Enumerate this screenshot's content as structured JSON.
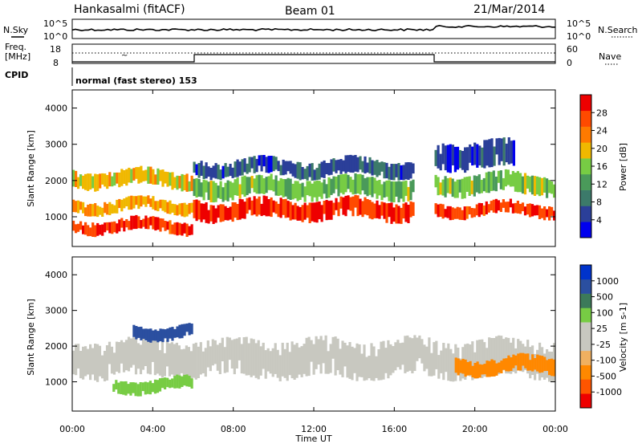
{
  "header": {
    "station": "Hankasalmi (fitACF)",
    "beam": "Beam 01",
    "date": "21/Mar/2014"
  },
  "top_panels": {
    "nsky_label": "N.Sky",
    "nsearch_label": "N.Search",
    "freq_label_1": "Freq.",
    "freq_label_2": "[MHz]",
    "nave_label": "Nave",
    "cpid_label": "CPID",
    "noise_ticks": [
      "10^5",
      "10^0"
    ],
    "freq_ticks": [
      "18",
      "8"
    ],
    "nave_ticks": [
      "60",
      "0"
    ],
    "cpid_text": "normal (fast stereo) 153"
  },
  "colors": {
    "power": [
      "#0000ee",
      "#2b3f99",
      "#3c7a6a",
      "#4a9a5a",
      "#77cc44",
      "#f0b800",
      "#ff7a00",
      "#ff4a00",
      "#ee0000"
    ],
    "velocity": [
      "#ee0000",
      "#ff5500",
      "#ff8800",
      "#f0b060",
      "#c8c8c0",
      "#c8c8c0",
      "#77cc44",
      "#3c7a5a",
      "#2b4fa0",
      "#0033cc"
    ],
    "ground_scatter": "#c8c8c0"
  },
  "chart_data": [
    {
      "type": "heatmap",
      "panel": "power",
      "ylabel": "Slant Range [km]",
      "yticks": [
        "1000",
        "2000",
        "3000",
        "4000"
      ],
      "ylim": [
        180,
        4500
      ],
      "xlim": [
        0,
        24
      ],
      "colorbar_label": "Power [dB]",
      "colorbar_ticks": [
        "4",
        "8",
        "12",
        "16",
        "20",
        "24",
        "28"
      ],
      "colorbar_range": [
        0,
        30
      ],
      "regions": [
        {
          "t0": 0,
          "t1": 6,
          "r0": 550,
          "r1": 950,
          "value": 26
        },
        {
          "t0": 0,
          "t1": 6,
          "r0": 1100,
          "r1": 1500,
          "value": 20
        },
        {
          "t0": 0,
          "t1": 6,
          "r0": 1800,
          "r1": 2300,
          "value": 18
        },
        {
          "t0": 6,
          "t1": 17,
          "r0": 900,
          "r1": 1500,
          "value": 27
        },
        {
          "t0": 6,
          "t1": 17,
          "r0": 1500,
          "r1": 2100,
          "value": 14
        },
        {
          "t0": 6,
          "t1": 17,
          "r0": 2100,
          "r1": 2600,
          "value": 6
        },
        {
          "t0": 18,
          "t1": 24,
          "r0": 1000,
          "r1": 1400,
          "value": 26
        },
        {
          "t0": 18,
          "t1": 24,
          "r0": 1600,
          "r1": 2200,
          "value": 14
        },
        {
          "t0": 18,
          "t1": 22,
          "r0": 2300,
          "r1": 3100,
          "value": 5
        }
      ]
    },
    {
      "type": "heatmap",
      "panel": "velocity",
      "ylabel": "Slant Range [km]",
      "yticks": [
        "1000",
        "2000",
        "3000",
        "4000"
      ],
      "ylim": [
        180,
        4500
      ],
      "xlim": [
        0,
        24
      ],
      "colorbar_label": "Velocity [m s-1]",
      "colorbar_ticks": [
        "-1000",
        "-500",
        "-100",
        "-25",
        "25",
        "100",
        "500",
        "1000"
      ],
      "regions": [
        {
          "t0": 0,
          "t1": 24,
          "r0": 1100,
          "r1": 2200,
          "value": 0
        },
        {
          "t0": 2,
          "t1": 6,
          "r0": 700,
          "r1": 1100,
          "value": 50
        },
        {
          "t0": 3,
          "t1": 6,
          "r0": 2200,
          "r1": 2600,
          "value": 700
        },
        {
          "t0": 19,
          "t1": 24,
          "r0": 1200,
          "r1": 1700,
          "value": -300
        }
      ]
    }
  ],
  "x_axis": {
    "title": "Time UT",
    "ticks": [
      "00:00",
      "04:00",
      "08:00",
      "12:00",
      "16:00",
      "20:00",
      "00:00"
    ]
  }
}
